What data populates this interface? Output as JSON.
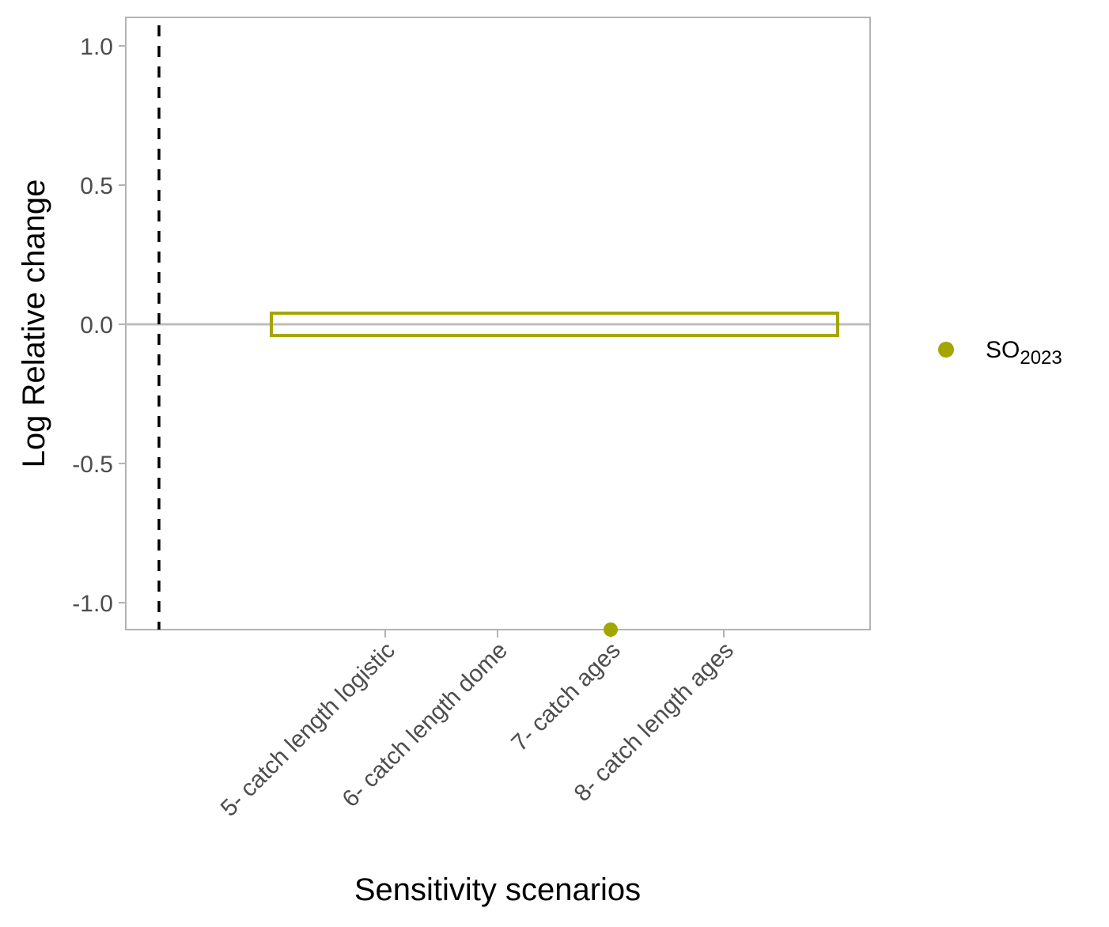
{
  "chart_data": {
    "type": "scatter",
    "title": "",
    "xlabel": "Sensitivity scenarios",
    "ylabel": "Log Relative change",
    "ylim": [
      -1.1,
      1.1
    ],
    "yticks": [
      1.0,
      0.5,
      0.0,
      -0.5,
      -1.0
    ],
    "ytick_labels": [
      "1.0",
      "0.5",
      "0.0",
      "-0.5",
      "-1.0"
    ],
    "categories": [
      "5- catch length logistic",
      "6- catch length dome",
      "7- catch ages",
      "8- catch length ages"
    ],
    "series": [
      {
        "name_main": "SO",
        "name_sub": "2023",
        "color": "#A3A500",
        "points": [
          {
            "x": "7- catch ages",
            "y": -1.1
          }
        ]
      }
    ],
    "reference_line": {
      "y": 0.0,
      "color": "#bebebe"
    },
    "vertical_dashed_line": {
      "color": "#000000",
      "style": "dashed"
    },
    "highlight_box": {
      "y_min": -0.04,
      "y_max": 0.04,
      "color": "#A3A500"
    },
    "grid": false,
    "legend_position": "right",
    "colors": {
      "series": "#A3A500",
      "panel_border": "#b3b3b3",
      "tick_text": "#4d4d4d",
      "axis_title": "#000000"
    }
  }
}
